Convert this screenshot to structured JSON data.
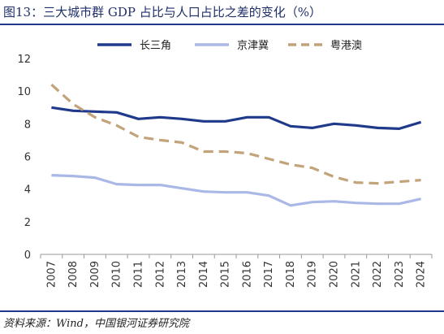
{
  "title": "图13：三大城市群 GDP 占比与人口占比之差的变化（%）",
  "source": "资料来源：Wind，中国银河证券研究院",
  "chart_data": {
    "type": "line",
    "x": [
      "2007",
      "2008",
      "2009",
      "2010",
      "2011",
      "2012",
      "2013",
      "2014",
      "2015",
      "2016",
      "2017",
      "2018",
      "2019",
      "2020",
      "2021",
      "2022",
      "2023",
      "2024"
    ],
    "ylim": [
      0,
      12
    ],
    "yticks": [
      0,
      2,
      4,
      6,
      8,
      10,
      12
    ],
    "grid": false,
    "legend_position": "top",
    "series": [
      {
        "name": "长三角",
        "color": "#1f3a8a",
        "style": "solid",
        "values": [
          9.0,
          8.8,
          8.75,
          8.7,
          8.3,
          8.4,
          8.3,
          8.15,
          8.15,
          8.4,
          8.4,
          7.85,
          7.75,
          8.0,
          7.9,
          7.75,
          7.7,
          8.1
        ]
      },
      {
        "name": "京津冀",
        "color": "#a9b8e6",
        "style": "solid",
        "values": [
          4.85,
          4.8,
          4.7,
          4.3,
          4.25,
          4.25,
          4.05,
          3.85,
          3.8,
          3.8,
          3.6,
          3.0,
          3.2,
          3.25,
          3.15,
          3.1,
          3.1,
          3.4
        ]
      },
      {
        "name": "粤港澳",
        "color": "#c2a37a",
        "style": "dashed",
        "values": [
          10.4,
          9.2,
          8.4,
          7.9,
          7.2,
          7.0,
          6.85,
          6.3,
          6.3,
          6.2,
          5.85,
          5.5,
          5.3,
          4.75,
          4.4,
          4.35,
          4.45,
          4.55
        ]
      }
    ]
  }
}
